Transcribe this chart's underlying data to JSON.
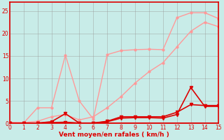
{
  "x": [
    0,
    1,
    2,
    3,
    4,
    5,
    6,
    7,
    8,
    9,
    10,
    11,
    12,
    13,
    14,
    15
  ],
  "line_light1_y": [
    0.2,
    0.1,
    3.5,
    3.5,
    15.2,
    5.0,
    1.0,
    15.3,
    16.2,
    16.4,
    16.5,
    16.4,
    23.5,
    24.6,
    24.6,
    23.3
  ],
  "line_light2_y": [
    0.2,
    0.2,
    0.5,
    1.5,
    2.0,
    0.8,
    1.5,
    3.5,
    6.0,
    9.0,
    11.5,
    13.5,
    17.0,
    20.5,
    22.5,
    21.5
  ],
  "line_dark1_y": [
    0.1,
    0.1,
    0.1,
    0.4,
    2.2,
    0.1,
    0.1,
    0.5,
    1.5,
    1.5,
    1.5,
    1.5,
    2.5,
    4.2,
    4.0,
    4.0
  ],
  "line_dark2_y": [
    0.1,
    0.0,
    0.1,
    0.2,
    0.3,
    0.1,
    0.1,
    0.4,
    1.2,
    1.3,
    1.3,
    1.2,
    2.0,
    8.0,
    3.8,
    3.8
  ],
  "color_dark": "#dd0000",
  "color_light": "#ff9999",
  "bg_color": "#c8ece8",
  "grid_color": "#999999",
  "xlabel": "Vent moyen/en rafales ( km/h )",
  "ylim": [
    0,
    27
  ],
  "xlim": [
    0,
    15
  ],
  "yticks": [
    0,
    5,
    10,
    15,
    20,
    25
  ],
  "xticks": [
    0,
    1,
    2,
    3,
    4,
    5,
    6,
    7,
    8,
    9,
    10,
    11,
    12,
    13,
    14,
    15
  ]
}
